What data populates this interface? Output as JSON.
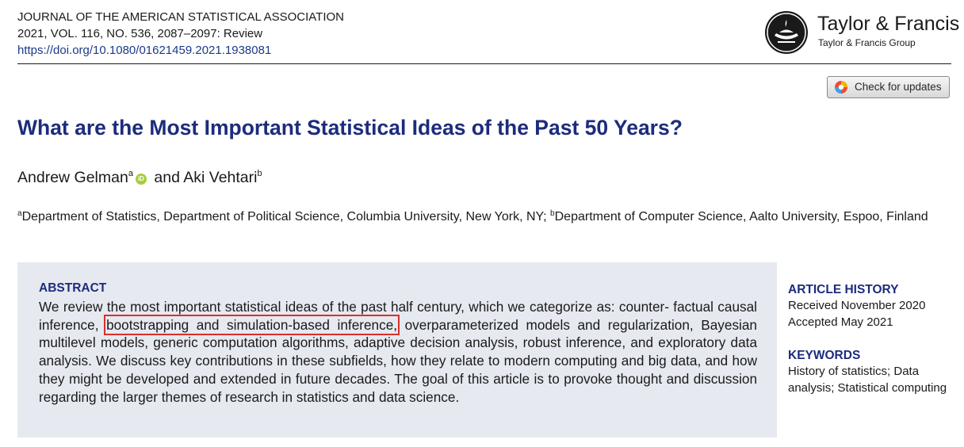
{
  "journal": {
    "name": "JOURNAL OF THE AMERICAN STATISTICAL ASSOCIATION",
    "citation": "2021, VOL. 116, NO. 536, 2087–2097: Review",
    "doi": "https://doi.org/10.1080/01621459.2021.1938081"
  },
  "publisher": {
    "name": "Taylor & Francis",
    "group": "Taylor & Francis Group",
    "logo_icon": "lamp-logo-icon"
  },
  "updates": {
    "label": "Check for updates",
    "icon": "crossmark-icon"
  },
  "title": "What are the Most Important Statistical Ideas of the Past 50 Years?",
  "authors": [
    {
      "name": "Andrew Gelman",
      "aff": "a",
      "orcid": "iD"
    },
    {
      "name": "Aki Vehtari",
      "aff": "b"
    }
  ],
  "authors_conjunction": "and",
  "affiliations": [
    {
      "sup": "a",
      "text": "Department of Statistics, Department of Political Science, Columbia University, New York, NY; "
    },
    {
      "sup": "b",
      "text": "Department of Computer Science, Aalto University, Espoo, Finland"
    }
  ],
  "abstract": {
    "heading": "ABSTRACT",
    "before": "We review the most important statistical ideas of the past half century, which we categorize as: counter- factual causal inference, ",
    "highlight": "bootstrapping and simulation-based inference,",
    "after": " overparameterized models and regularization, Bayesian multilevel models, generic computation algorithms, adaptive decision analysis, robust inference, and exploratory data analysis. We discuss key contributions in these subfields, how they relate to modern computing and big data, and how they might be developed and extended in future decades. The goal of this article is to provoke thought and discussion regarding the larger themes of research in statistics and data science."
  },
  "article_history": {
    "heading": "ARTICLE HISTORY",
    "received": "Received November 2020",
    "accepted": "Accepted May 2021"
  },
  "keywords": {
    "heading": "KEYWORDS",
    "text": "History of statistics; Data analysis; Statistical computing"
  },
  "colors": {
    "title": "#1c2c7c",
    "highlight_box": "#d9302a",
    "abstract_bg": "#e6e9f0",
    "orcid": "#a6ce39"
  }
}
